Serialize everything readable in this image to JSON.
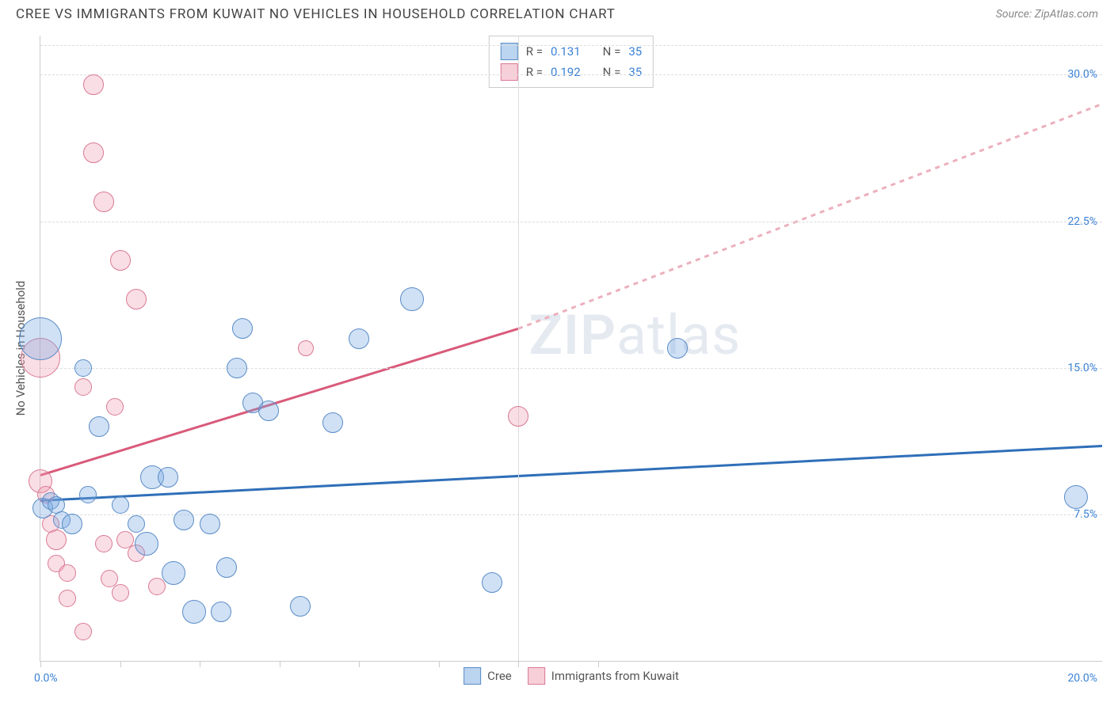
{
  "header": {
    "title": "CREE VS IMMIGRANTS FROM KUWAIT NO VEHICLES IN HOUSEHOLD CORRELATION CHART",
    "source": "Source: ZipAtlas.com"
  },
  "chart": {
    "type": "scatter",
    "ylabel": "No Vehicles in Household",
    "xlim": [
      0,
      20
    ],
    "ylim": [
      0,
      32
    ],
    "xlabel_start": "0.0%",
    "xlabel_end": "20.0%",
    "ytick_labels": [
      "7.5%",
      "15.0%",
      "22.5%",
      "30.0%"
    ],
    "ytick_vals": [
      7.5,
      15.0,
      22.5,
      30.0
    ],
    "xtick_positions": [
      0,
      1.5,
      3.0,
      4.5,
      6.0,
      7.5,
      9.0,
      10.5
    ],
    "background_color": "#ffffff",
    "grid_color": "#dddddd",
    "watermark": {
      "zip": "ZIP",
      "atlas": "atlas"
    },
    "series": {
      "cree": {
        "label": "Cree",
        "color": "#78aae1",
        "border": "#5a8cc7",
        "r_value": "0.131",
        "n_value": "35",
        "points": [
          {
            "x": 0.0,
            "y": 16.5,
            "r": 26
          },
          {
            "x": 0.05,
            "y": 7.8,
            "r": 12
          },
          {
            "x": 0.2,
            "y": 8.2,
            "r": 10
          },
          {
            "x": 0.3,
            "y": 8.0,
            "r": 10
          },
          {
            "x": 0.4,
            "y": 7.2,
            "r": 10
          },
          {
            "x": 0.6,
            "y": 7.0,
            "r": 12
          },
          {
            "x": 0.8,
            "y": 15.0,
            "r": 10
          },
          {
            "x": 0.9,
            "y": 8.5,
            "r": 10
          },
          {
            "x": 1.1,
            "y": 12.0,
            "r": 12
          },
          {
            "x": 1.5,
            "y": 8.0,
            "r": 10
          },
          {
            "x": 1.8,
            "y": 7.0,
            "r": 10
          },
          {
            "x": 2.0,
            "y": 6.0,
            "r": 14
          },
          {
            "x": 2.1,
            "y": 9.4,
            "r": 14
          },
          {
            "x": 2.4,
            "y": 9.4,
            "r": 12
          },
          {
            "x": 2.5,
            "y": 4.5,
            "r": 14
          },
          {
            "x": 2.7,
            "y": 7.2,
            "r": 12
          },
          {
            "x": 2.9,
            "y": 2.5,
            "r": 14
          },
          {
            "x": 3.2,
            "y": 7.0,
            "r": 12
          },
          {
            "x": 3.4,
            "y": 2.5,
            "r": 12
          },
          {
            "x": 3.5,
            "y": 4.8,
            "r": 12
          },
          {
            "x": 3.7,
            "y": 15.0,
            "r": 12
          },
          {
            "x": 3.8,
            "y": 17.0,
            "r": 12
          },
          {
            "x": 4.0,
            "y": 13.2,
            "r": 12
          },
          {
            "x": 4.3,
            "y": 12.8,
            "r": 12
          },
          {
            "x": 4.9,
            "y": 2.8,
            "r": 12
          },
          {
            "x": 5.5,
            "y": 12.2,
            "r": 12
          },
          {
            "x": 6.0,
            "y": 16.5,
            "r": 12
          },
          {
            "x": 7.0,
            "y": 18.5,
            "r": 14
          },
          {
            "x": 8.5,
            "y": 4.0,
            "r": 12
          },
          {
            "x": 12.0,
            "y": 16.0,
            "r": 12
          },
          {
            "x": 19.5,
            "y": 8.4,
            "r": 14
          }
        ],
        "trend": {
          "x1": 0,
          "y1": 8.2,
          "x2": 20,
          "y2": 11.0,
          "color": "#2f6fb8",
          "dashed": false
        }
      },
      "kuwait": {
        "label": "Immigrants from Kuwait",
        "color": "#f0a0b4",
        "border": "#d97a94",
        "r_value": "0.192",
        "n_value": "35",
        "points": [
          {
            "x": 0.0,
            "y": 15.5,
            "r": 24
          },
          {
            "x": 0.0,
            "y": 9.2,
            "r": 14
          },
          {
            "x": 0.1,
            "y": 8.5,
            "r": 10
          },
          {
            "x": 0.2,
            "y": 7.0,
            "r": 10
          },
          {
            "x": 0.3,
            "y": 6.2,
            "r": 12
          },
          {
            "x": 0.3,
            "y": 5.0,
            "r": 10
          },
          {
            "x": 0.5,
            "y": 4.5,
            "r": 10
          },
          {
            "x": 0.5,
            "y": 3.2,
            "r": 10
          },
          {
            "x": 0.8,
            "y": 1.5,
            "r": 10
          },
          {
            "x": 0.8,
            "y": 14.0,
            "r": 10
          },
          {
            "x": 1.0,
            "y": 29.5,
            "r": 12
          },
          {
            "x": 1.0,
            "y": 26.0,
            "r": 12
          },
          {
            "x": 1.2,
            "y": 23.5,
            "r": 12
          },
          {
            "x": 1.2,
            "y": 6.0,
            "r": 10
          },
          {
            "x": 1.3,
            "y": 4.2,
            "r": 10
          },
          {
            "x": 1.4,
            "y": 13.0,
            "r": 10
          },
          {
            "x": 1.5,
            "y": 20.5,
            "r": 12
          },
          {
            "x": 1.5,
            "y": 3.5,
            "r": 10
          },
          {
            "x": 1.6,
            "y": 6.2,
            "r": 10
          },
          {
            "x": 1.8,
            "y": 18.5,
            "r": 12
          },
          {
            "x": 1.8,
            "y": 5.5,
            "r": 10
          },
          {
            "x": 2.2,
            "y": 3.8,
            "r": 10
          },
          {
            "x": 5.0,
            "y": 16.0,
            "r": 9
          },
          {
            "x": 9.0,
            "y": 12.5,
            "r": 12
          }
        ],
        "trend_solid": {
          "x1": 0,
          "y1": 9.5,
          "x2": 9.0,
          "y2": 17.0,
          "color": "#d95a7a"
        },
        "trend_dashed": {
          "x1": 9.0,
          "y1": 17.0,
          "x2": 20,
          "y2": 28.5,
          "color": "#ecb0bd"
        }
      }
    }
  },
  "legend": {
    "r_label": "R  =",
    "n_label": "N  ="
  }
}
